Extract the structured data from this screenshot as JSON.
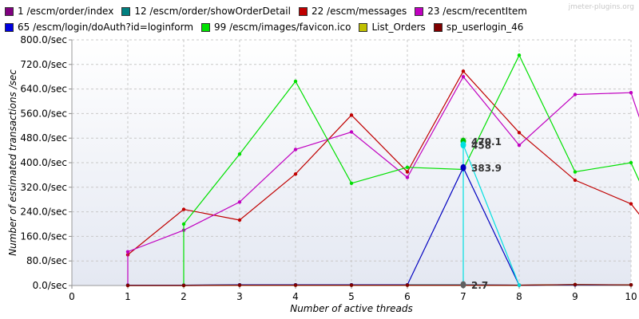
{
  "watermark": "jmeter-plugins.org",
  "chart_data": {
    "type": "line",
    "title": "",
    "xlabel": "Number of active threads",
    "ylabel": "Number of estimated transactions /sec",
    "xlim": [
      0,
      10
    ],
    "ylim": [
      0,
      800
    ],
    "x_ticks": [
      "0",
      "1",
      "2",
      "3",
      "4",
      "5",
      "6",
      "7",
      "8",
      "9",
      "10"
    ],
    "y_ticks": [
      "0.0/sec",
      "80.0/sec",
      "160.0/sec",
      "240.0/sec",
      "320.0/sec",
      "400.0/sec",
      "480.0/sec",
      "560.0/sec",
      "640.0/sec",
      "720.0/sec",
      "800.0/sec"
    ],
    "grid": true,
    "legend_position": "top",
    "series": [
      {
        "name": "1 /escm/order/index",
        "color": "#800080",
        "points": [
          [
            1,
            1
          ],
          [
            2,
            1
          ],
          [
            3,
            2
          ],
          [
            4,
            2
          ],
          [
            5,
            2
          ],
          [
            6,
            2
          ],
          [
            7,
            2
          ],
          [
            8,
            1
          ],
          [
            9,
            2
          ],
          [
            10,
            2
          ]
        ]
      },
      {
        "name": "12 /escm/order/showOrderDetail",
        "color": "#008080",
        "points": [
          [
            1,
            1
          ],
          [
            2,
            1
          ],
          [
            3,
            2
          ],
          [
            4,
            2
          ],
          [
            5,
            2
          ],
          [
            6,
            2
          ],
          [
            7,
            2
          ],
          [
            8,
            1
          ],
          [
            9,
            2
          ],
          [
            10,
            2
          ]
        ]
      },
      {
        "name": "22 /escm/messages",
        "color": "#c00000",
        "points": [
          [
            1,
            100
          ],
          [
            2,
            248
          ],
          [
            3,
            213
          ],
          [
            4,
            363
          ],
          [
            5,
            555
          ],
          [
            6,
            370
          ],
          [
            7,
            698
          ],
          [
            8,
            498
          ],
          [
            9,
            343
          ],
          [
            10,
            266
          ],
          [
            10.2,
            220
          ]
        ]
      },
      {
        "name": "23 /escm/recentItem",
        "color": "#c000c0",
        "points": [
          [
            1,
            0
          ],
          [
            1,
            110
          ],
          [
            2,
            180
          ],
          [
            3,
            272
          ],
          [
            4,
            443
          ],
          [
            5,
            500
          ],
          [
            6,
            352
          ],
          [
            7,
            680
          ],
          [
            8,
            457
          ],
          [
            9,
            622
          ],
          [
            10,
            628
          ],
          [
            10.2,
            520
          ]
        ]
      },
      {
        "name": "65 /escm/login/doAuth?id=loginform",
        "color": "#0000c0",
        "points": [
          [
            1,
            1
          ],
          [
            2,
            1
          ],
          [
            3,
            2
          ],
          [
            4,
            2
          ],
          [
            5,
            2
          ],
          [
            6,
            2
          ],
          [
            7,
            383.9
          ],
          [
            8,
            1
          ],
          [
            9,
            2
          ],
          [
            10,
            2
          ]
        ]
      },
      {
        "name": "99 /escm/images/favicon.ico",
        "color": "#00e000",
        "points": [
          [
            2,
            0
          ],
          [
            2,
            200
          ],
          [
            3,
            428
          ],
          [
            4,
            665
          ],
          [
            5,
            333
          ],
          [
            6,
            385
          ],
          [
            7,
            378
          ],
          [
            8,
            750
          ],
          [
            9,
            370
          ],
          [
            10,
            400
          ],
          [
            10.2,
            320
          ]
        ]
      },
      {
        "name": "List_Orders",
        "color": "#c0c000",
        "points": [
          [
            1,
            0
          ],
          [
            2,
            0
          ],
          [
            3,
            1
          ],
          [
            4,
            1
          ],
          [
            5,
            1
          ],
          [
            6,
            1
          ],
          [
            7,
            1
          ],
          [
            8,
            1
          ],
          [
            9,
            3
          ],
          [
            10,
            2
          ]
        ]
      },
      {
        "name": "sp_userlogin_46",
        "color": "#800000",
        "points": [
          [
            1,
            0
          ],
          [
            2,
            0
          ],
          [
            3,
            1
          ],
          [
            4,
            1
          ],
          [
            5,
            1
          ],
          [
            6,
            1
          ],
          [
            7,
            1
          ],
          [
            8,
            1
          ],
          [
            9,
            3
          ],
          [
            10,
            2
          ]
        ]
      },
      {
        "name": "",
        "color": "#00e0e0",
        "legend": false,
        "points": [
          [
            7,
            0
          ],
          [
            7,
            458
          ],
          [
            8,
            1
          ]
        ]
      }
    ],
    "annotations": [
      {
        "x": 7,
        "y": 470.1,
        "text": "470.1",
        "color": "#00c000"
      },
      {
        "x": 7,
        "y": 458,
        "text": "458",
        "color": "#00e0e0"
      },
      {
        "x": 7,
        "y": 383.9,
        "text": "383.9",
        "color": "#0000c0"
      },
      {
        "x": 7,
        "y": 2.7,
        "text": "2.7",
        "color": "#606060"
      }
    ]
  }
}
